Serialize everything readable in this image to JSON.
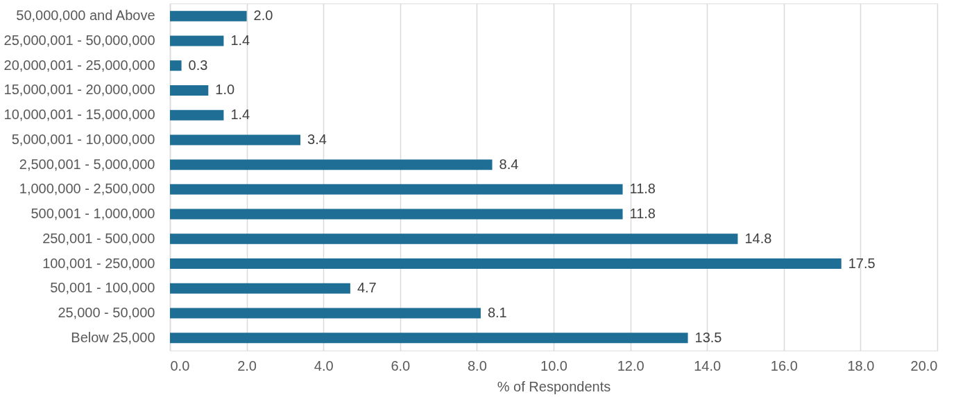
{
  "chart_data": {
    "type": "bar",
    "orientation": "horizontal",
    "xlabel": "% of Respondents",
    "categories": [
      "50,000,000 and Above",
      "25,000,001 - 50,000,000",
      "20,000,001 - 25,000,000",
      "15,000,001 - 20,000,000",
      "10,000,001 - 15,000,000",
      "5,000,001 - 10,000,000",
      "2,500,001 - 5,000,000",
      "1,000,000 - 2,500,000",
      "500,001 - 1,000,000",
      "250,001 - 500,000",
      "100,001 - 250,000",
      "50,001 - 100,000",
      "25,000 - 50,000",
      "Below 25,000"
    ],
    "values": [
      2.0,
      1.4,
      0.3,
      1.0,
      1.4,
      3.4,
      8.4,
      11.8,
      11.8,
      14.8,
      17.5,
      4.7,
      8.1,
      13.5
    ],
    "value_labels": [
      "2.0",
      "1.4",
      "0.3",
      "1.0",
      "1.4",
      "3.4",
      "8.4",
      "11.8",
      "11.8",
      "14.8",
      "17.5",
      "4.7",
      "8.1",
      "13.5"
    ],
    "color": "#1f6e96",
    "xlim": [
      0,
      20
    ],
    "xticks": [
      {
        "value": 0,
        "label": "0.0"
      },
      {
        "value": 2,
        "label": "2.0"
      },
      {
        "value": 4,
        "label": "4.0"
      },
      {
        "value": 6,
        "label": "6.0"
      },
      {
        "value": 8,
        "label": "8.0"
      },
      {
        "value": 10,
        "label": "10.0"
      },
      {
        "value": 12,
        "label": "12.0"
      },
      {
        "value": 14,
        "label": "14.0"
      },
      {
        "value": 16,
        "label": "16.0"
      },
      {
        "value": 18,
        "label": "18.0"
      },
      {
        "value": 20,
        "label": "20.0"
      }
    ],
    "grid": "x"
  }
}
